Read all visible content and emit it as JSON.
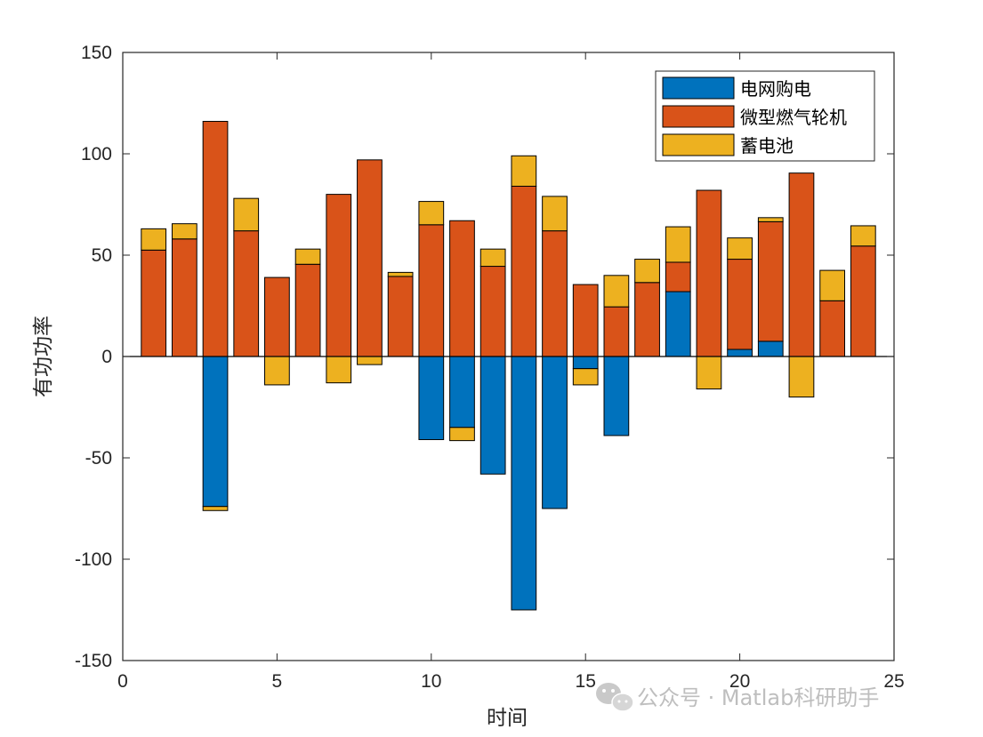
{
  "chart_data": {
    "type": "bar",
    "stacked": true,
    "x": [
      1,
      2,
      3,
      4,
      5,
      6,
      7,
      8,
      9,
      10,
      11,
      12,
      13,
      14,
      15,
      16,
      17,
      18,
      19,
      20,
      21,
      22,
      23,
      24
    ],
    "series": [
      {
        "name": "电网购电",
        "color": "#0072BD",
        "values": [
          0,
          0,
          -74,
          0,
          0,
          0,
          0,
          0,
          0,
          -41,
          -35,
          -58,
          -125,
          -75,
          -6,
          -39,
          0,
          32,
          0,
          3.5,
          7.5,
          0,
          0,
          0
        ]
      },
      {
        "name": "微型燃气轮机",
        "color": "#D95319",
        "values": [
          52.5,
          58,
          116,
          62,
          39,
          45.5,
          80,
          97,
          39.5,
          65,
          67,
          44.5,
          84,
          62,
          35.5,
          24.5,
          36.5,
          14.5,
          82,
          44.5,
          59,
          90.5,
          27.5,
          54.5
        ]
      },
      {
        "name": "蓄电池",
        "color": "#EDB120",
        "values": [
          10.5,
          7.5,
          -2,
          16,
          -14,
          7.5,
          -13,
          -4,
          2,
          11.5,
          -6.5,
          8.5,
          15,
          17,
          -8,
          15.5,
          11.5,
          17.5,
          -16,
          10.5,
          2,
          -20,
          15,
          10
        ]
      }
    ],
    "xlabel": "时间",
    "ylabel": "有功功率",
    "xlim": [
      0,
      25
    ],
    "ylim": [
      -150,
      150
    ],
    "xticks": [
      "0",
      "5",
      "10",
      "15",
      "20",
      "25"
    ],
    "yticks": [
      "150",
      "100",
      "50",
      "0",
      "-50",
      "-100",
      "-150"
    ],
    "grid": false,
    "legend_position": "top-right"
  },
  "watermark": {
    "text": "公众号 · Matlab科研助手",
    "icon": "wechat-icon"
  }
}
